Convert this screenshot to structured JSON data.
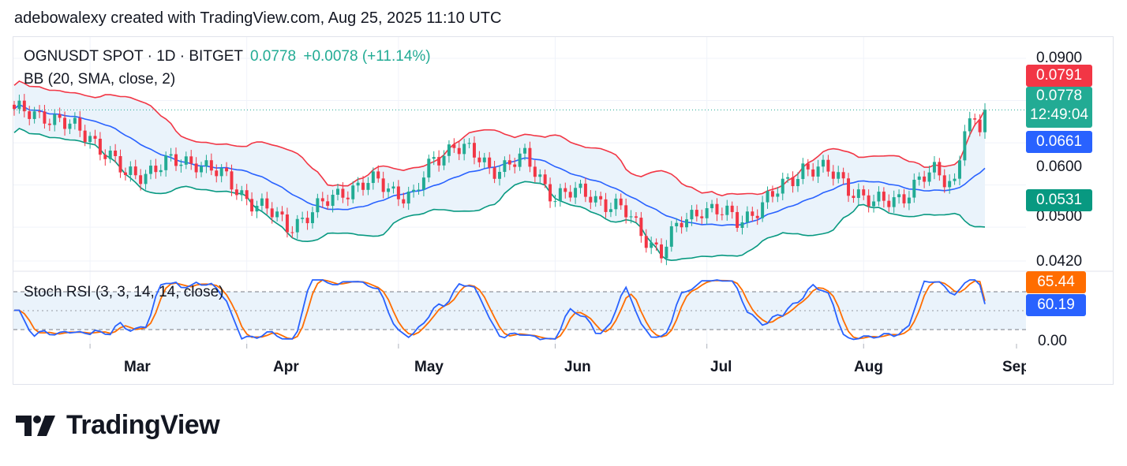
{
  "header": {
    "text": "adebowalexy created with TradingView.com, Aug 25, 2025 11:10 UTC"
  },
  "legend": {
    "symbol": "OGNUSDT SPOT · 1D · BITGET",
    "price": "0.0778",
    "change": "+0.0078 (+11.14%)",
    "bb": "BB (20, SMA, close, 2)",
    "stoch": "Stoch RSI (3, 3, 14, 14, close)"
  },
  "price_tags": {
    "upper": "0.0791",
    "last": "0.0778",
    "countdown": "12:49:04",
    "basis": "0.0661",
    "lower": "0.0531",
    "stoch_k": "65.44",
    "stoch_d": "60.19"
  },
  "price_axis": [
    "0.0900",
    "0.0600",
    "0.0500",
    "0.0420"
  ],
  "stoch_axis": [
    "0.00"
  ],
  "months": [
    "Mar",
    "Apr",
    "May",
    "Jun",
    "Jul",
    "Aug",
    "Sep"
  ],
  "brand": {
    "name": "TradingView"
  },
  "colors": {
    "up": "#22ab94",
    "down": "#f23645",
    "upper_band": "#f23645",
    "basis": "#2962ff",
    "lower_band": "#089981",
    "band_fill": "#eaf3fb",
    "stoch_k": "#2962ff",
    "stoch_d": "#ff6d00"
  },
  "chart_data": {
    "type": "candlestick",
    "symbol": "OGNUSDT",
    "interval": "1D",
    "x_range": [
      "Feb 2025",
      "Aug 25, 2025"
    ],
    "y_ticks": [
      0.09,
      0.06,
      0.05,
      0.042
    ],
    "ylim": [
      0.039,
      0.094
    ],
    "close_path": [
      [
        "Feb 14",
        0.077
      ],
      [
        "Feb 20",
        0.077
      ],
      [
        "Feb 24",
        0.074
      ],
      [
        "Mar 1",
        0.072
      ],
      [
        "Mar 8",
        0.062
      ],
      [
        "Mar 15",
        0.0645
      ],
      [
        "Mar 22",
        0.066
      ],
      [
        "Mar 28",
        0.061
      ],
      [
        "Apr 4",
        0.0545
      ],
      [
        "Apr 9",
        0.0505
      ],
      [
        "Apr 15",
        0.054
      ],
      [
        "Apr 20",
        0.059
      ],
      [
        "Apr 27",
        0.0605
      ],
      [
        "May 4",
        0.057
      ],
      [
        "May 8",
        0.066
      ],
      [
        "May 12",
        0.07
      ],
      [
        "May 19",
        0.064
      ],
      [
        "May 26",
        0.066
      ],
      [
        "Jun 1",
        0.0575
      ],
      [
        "Jun 8",
        0.058
      ],
      [
        "Jun 15",
        0.053
      ],
      [
        "Jun 22",
        0.044
      ],
      [
        "Jun 26",
        0.051
      ],
      [
        "Jun 30",
        0.055
      ],
      [
        "Jul 7",
        0.0515
      ],
      [
        "Jul 14",
        0.057
      ],
      [
        "Jul 20",
        0.0645
      ],
      [
        "Jul 27",
        0.062
      ],
      [
        "Aug 3",
        0.055
      ],
      [
        "Aug 9",
        0.058
      ],
      [
        "Aug 15",
        0.063
      ],
      [
        "Aug 19",
        0.061
      ],
      [
        "Aug 21",
        0.074
      ],
      [
        "Aug 24",
        0.073
      ],
      [
        "Aug 25",
        0.0778
      ]
    ],
    "bollinger": {
      "params": "20, SMA, close, 2",
      "upper_last": 0.0791,
      "basis_last": 0.0661,
      "lower_last": 0.0531
    },
    "stoch_rsi": {
      "params": "3, 3, 14, 14, close",
      "k_last": 65.44,
      "d_last": 60.19,
      "axis_ticks": [
        0
      ]
    }
  }
}
